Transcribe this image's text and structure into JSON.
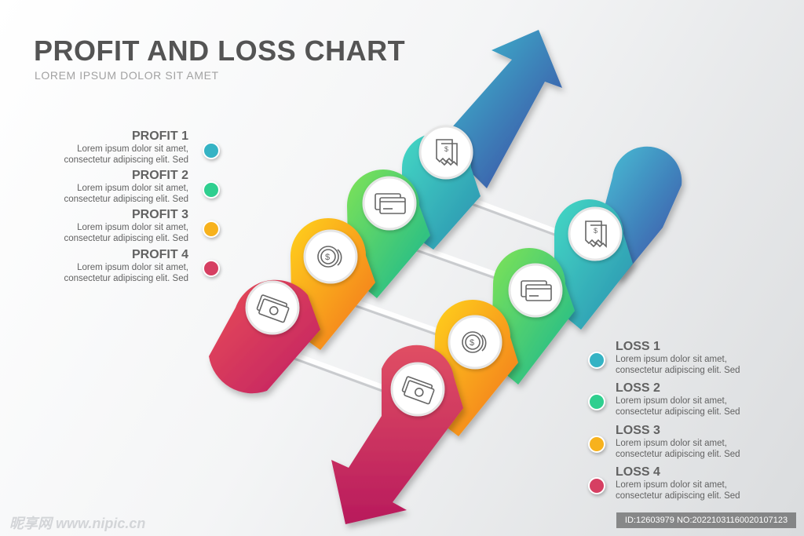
{
  "title": "PROFIT AND LOSS CHART",
  "subtitle": "LOREM IPSUM DOLOR SIT AMET",
  "profit": [
    {
      "label": "PROFIT 1",
      "line1": "Lorem ipsum dolor sit amet,",
      "line2": "consectetur adipiscing elit. Sed",
      "color": "#35b3c4"
    },
    {
      "label": "PROFIT 2",
      "line1": "Lorem ipsum dolor sit amet,",
      "line2": "consectetur adipiscing elit. Sed",
      "color": "#2fcf8f"
    },
    {
      "label": "PROFIT 3",
      "line1": "Lorem ipsum dolor sit amet,",
      "line2": "consectetur adipiscing elit. Sed",
      "color": "#f7b21d"
    },
    {
      "label": "PROFIT 4",
      "line1": "Lorem ipsum dolor sit amet,",
      "line2": "consectetur adipiscing elit. Sed",
      "color": "#d63f62"
    }
  ],
  "loss": [
    {
      "label": "LOSS 1",
      "line1": "Lorem ipsum dolor sit amet,",
      "line2": "consectetur adipiscing elit. Sed",
      "color": "#35b3c4"
    },
    {
      "label": "LOSS 2",
      "line1": "Lorem ipsum dolor sit amet,",
      "line2": "consectetur adipiscing elit. Sed",
      "color": "#2fcf8f"
    },
    {
      "label": "LOSS 3",
      "line1": "Lorem ipsum dolor sit amet,",
      "line2": "consectetur adipiscing elit. Sed",
      "color": "#f7b21d"
    },
    {
      "label": "LOSS 4",
      "line1": "Lorem ipsum dolor sit amet,",
      "line2": "consectetur adipiscing elit. Sed",
      "color": "#d63f62"
    }
  ],
  "step_icons": [
    "receipt-icon",
    "credit-card-icon",
    "coin-icon",
    "banknote-icon"
  ],
  "watermark": {
    "left": "昵享网 www.nipic.cn",
    "right": "ID:12603979 NO:20221031160020107123"
  }
}
